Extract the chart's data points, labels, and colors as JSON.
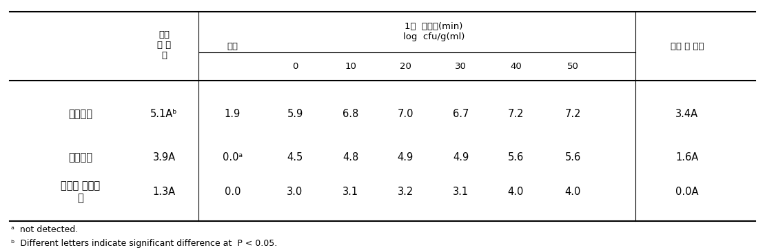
{
  "col_header_pre": "세척\n전 참\n외",
  "col_header_wonsu": "원수",
  "col_header_group": "1차  세척수(min)\nlog  cfu/g(ml)",
  "col_header_post": "세척 후 참외",
  "sub_headers": [
    "0",
    "10",
    "20",
    "30",
    "40",
    "50"
  ],
  "rows": [
    {
      "label": "일반세균",
      "pre": "5.1Aᵇ",
      "wonsu": "1.9",
      "times": [
        "5.9",
        "6.8",
        "7.0",
        "6.7",
        "7.2",
        "7.2"
      ],
      "post": "3.4A"
    },
    {
      "label": "대장균군",
      "pre": "3.9A",
      "wonsu": "0.0ᵃ",
      "times": [
        "4.5",
        "4.8",
        "4.9",
        "4.9",
        "5.6",
        "5.6"
      ],
      "post": "1.6A"
    },
    {
      "label": "분원성 대장균\n군",
      "pre": "1.3A",
      "wonsu": "0.0",
      "times": [
        "3.0",
        "3.1",
        "3.2",
        "3.1",
        "4.0",
        "4.0"
      ],
      "post": "0.0A"
    }
  ],
  "footnote_a": "ᵃ  not detected.",
  "footnote_b": "ᵇ  Different letters indicate significant difference at  P < 0.05.",
  "bg_color": "#ffffff",
  "text_color": "#000000"
}
